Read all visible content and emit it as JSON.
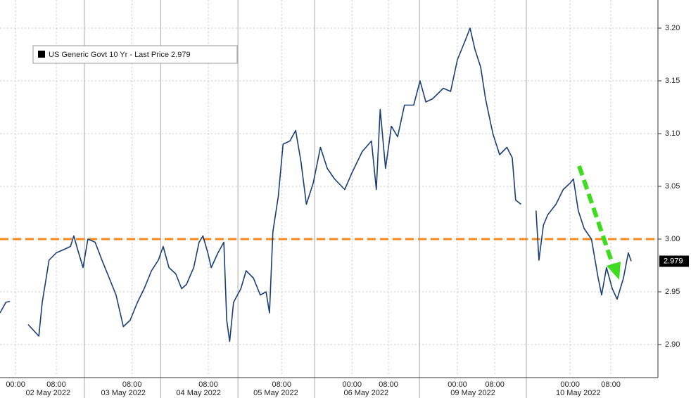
{
  "chart_data": {
    "type": "line",
    "series": [
      {
        "name": "US Generic Govt 10 Yr - Last Price 2.979",
        "color": "#1b3f73",
        "values": [
          2.93,
          2.94,
          2.941,
          null,
          2.919,
          2.913,
          2.908,
          2.94,
          2.96,
          2.98,
          2.987,
          2.99,
          2.993,
          3.003,
          2.99,
          2.973,
          3.0,
          2.997,
          2.98,
          2.963,
          2.947,
          2.917,
          2.923,
          2.94,
          2.953,
          2.97,
          2.98,
          2.993,
          2.973,
          2.967,
          2.953,
          2.957,
          2.973,
          2.997,
          3.003,
          2.987,
          2.973,
          2.987,
          2.997,
          2.923,
          2.903,
          2.94,
          2.953,
          2.97,
          2.963,
          2.947,
          2.95,
          2.93,
          3.007,
          3.04,
          3.09,
          3.093,
          3.103,
          3.073,
          3.033,
          3.053,
          3.087,
          3.067,
          3.057,
          3.047,
          3.063,
          3.083,
          3.093,
          3.047,
          3.123,
          3.067,
          3.107,
          3.097,
          3.127,
          3.127,
          3.15,
          3.13,
          3.133,
          3.143,
          3.14,
          3.17,
          3.187,
          3.2,
          3.18,
          3.163,
          3.133,
          3.1,
          3.08,
          3.087,
          3.077,
          3.037,
          3.033,
          null,
          3.027,
          2.98,
          3.013,
          3.023,
          3.033,
          3.047,
          3.053,
          3.057,
          3.027,
          3.01,
          3.0,
          2.963,
          2.947,
          2.973,
          2.953,
          2.943,
          2.963,
          2.987,
          2.979
        ]
      }
    ],
    "x": [
      -3.2,
      -2.0,
      -1.2,
      1.0,
      2.6,
      3.8,
      4.8,
      5.5,
      6.2,
      6.9,
      8.4,
      9.9,
      11.3,
      12.0,
      12.8,
      13.9,
      14.9,
      16.4,
      17.8,
      19.3,
      20.7,
      22.2,
      23.6,
      25.1,
      26.5,
      28.0,
      29.4,
      30.4,
      31.6,
      33.0,
      34.2,
      35.2,
      36.7,
      37.8,
      38.6,
      39.6,
      40.3,
      41.7,
      42.9,
      43.5,
      44.1,
      44.9,
      46.4,
      47.5,
      49.0,
      50.4,
      51.6,
      52.3,
      53.0,
      54.1,
      55.1,
      56.5,
      57.7,
      58.8,
      59.9,
      61.3,
      62.8,
      64.2,
      65.7,
      67.8,
      69.3,
      71.4,
      73.3,
      74.3,
      75.1,
      76.2,
      77.4,
      78.7,
      80.1,
      82.0,
      83.3,
      84.5,
      85.9,
      88.1,
      89.6,
      91.0,
      92.5,
      93.6,
      94.6,
      95.8,
      96.8,
      98.3,
      99.7,
      101.2,
      102.3,
      103.0,
      104.1,
      105.0,
      107.2,
      107.8,
      108.7,
      109.6,
      111.3,
      112.8,
      114.2,
      114.9,
      115.9,
      117.1,
      118.6,
      120.0,
      120.7,
      121.7,
      122.9,
      123.9,
      125.2,
      126.2,
      126.8
    ],
    "xlim": [
      -3.2,
      132.3
    ],
    "xticks": [
      {
        "value": 0,
        "label": "00:00"
      },
      {
        "value": 8.4,
        "label": "08:00"
      },
      {
        "value": 24,
        "label": "08:00"
      },
      {
        "value": 39.7,
        "label": "08:00"
      },
      {
        "value": 54.8,
        "label": "08:00"
      },
      {
        "value": 69.3,
        "label": "00:00"
      },
      {
        "value": 76.8,
        "label": "08:00"
      },
      {
        "value": 91,
        "label": "00:00"
      },
      {
        "value": 98.7,
        "label": "08:00"
      },
      {
        "value": 114.2,
        "label": "00:00"
      },
      {
        "value": 122.6,
        "label": "08:00"
      }
    ],
    "date_labels": [
      {
        "value": 6.7,
        "label": "02 May 2022"
      },
      {
        "value": 22.2,
        "label": "03 May 2022"
      },
      {
        "value": 37.7,
        "label": "04 May 2022"
      },
      {
        "value": 53.6,
        "label": "05 May 2022"
      },
      {
        "value": 72.2,
        "label": "06 May 2022"
      },
      {
        "value": 94.2,
        "label": "09 May 2022"
      },
      {
        "value": 115.9,
        "label": "10 May 2022"
      }
    ],
    "day_breaks": [
      14.2,
      29.9,
      45.8,
      61.6,
      83.2,
      105.2
    ],
    "ylim": [
      2.87,
      3.22
    ],
    "yticks": [
      {
        "value": 2.9,
        "label": "2.90"
      },
      2.95,
      {
        "value": 3.0,
        "label": "3.00"
      },
      3.05,
      {
        "value": 3.1,
        "label": "3.10"
      },
      3.15,
      {
        "value": 3.2,
        "label": "3.20"
      }
    ],
    "y_axis_side": "right",
    "grid": true,
    "reference_line": {
      "value": 3.0,
      "color": "#f4891f"
    },
    "last_value": 2.979
  }
}
